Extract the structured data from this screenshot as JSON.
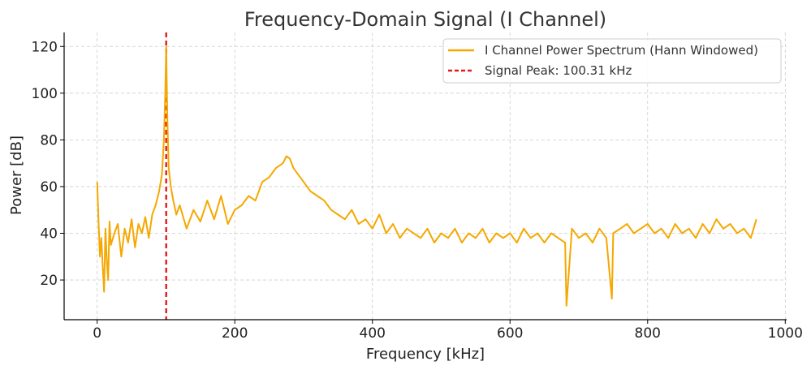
{
  "chart_data": {
    "type": "line",
    "title": "Frequency-Domain Signal (I Channel)",
    "xlabel": "Frequency [kHz]",
    "ylabel": "Power [dB]",
    "xlim": [
      -48,
      1002
    ],
    "ylim": [
      3,
      126
    ],
    "x_ticks": [
      0,
      200,
      400,
      600,
      800,
      1000
    ],
    "y_ticks": [
      20,
      40,
      60,
      80,
      100,
      120
    ],
    "x_tick_labels": [
      "0",
      "200",
      "400",
      "600",
      "800",
      "1000"
    ],
    "y_tick_labels": [
      "20",
      "40",
      "60",
      "80",
      "100",
      "120"
    ],
    "grid": true,
    "legend_position": "top-right",
    "series": [
      {
        "name": "I Channel Power Spectrum (Hann Windowed)",
        "color": "#f5a800",
        "style": "solid",
        "x": [
          0,
          2,
          4,
          6,
          8,
          10,
          12,
          14,
          16,
          18,
          20,
          25,
          30,
          35,
          40,
          45,
          50,
          55,
          60,
          65,
          70,
          75,
          80,
          85,
          90,
          94,
          97,
          99,
          100.31,
          102,
          104,
          107,
          110,
          115,
          120,
          130,
          140,
          150,
          160,
          170,
          180,
          190,
          200,
          210,
          220,
          230,
          240,
          250,
          260,
          270,
          275,
          280,
          285,
          290,
          300,
          310,
          320,
          330,
          340,
          350,
          360,
          370,
          380,
          390,
          400,
          410,
          420,
          430,
          440,
          450,
          460,
          470,
          480,
          490,
          500,
          510,
          520,
          530,
          540,
          550,
          560,
          570,
          580,
          590,
          600,
          610,
          620,
          630,
          640,
          650,
          660,
          670,
          680,
          682,
          690,
          700,
          710,
          720,
          730,
          740,
          748,
          750,
          760,
          770,
          780,
          790,
          800,
          810,
          820,
          830,
          840,
          850,
          860,
          870,
          880,
          890,
          900,
          910,
          920,
          930,
          940,
          950,
          958
        ],
        "y": [
          62,
          45,
          30,
          38,
          26,
          15,
          42,
          28,
          20,
          45,
          35,
          40,
          44,
          30,
          42,
          36,
          46,
          34,
          44,
          40,
          47,
          38,
          48,
          52,
          58,
          65,
          80,
          100,
          120,
          90,
          68,
          60,
          55,
          48,
          52,
          42,
          50,
          45,
          54,
          46,
          56,
          44,
          50,
          52,
          56,
          54,
          62,
          64,
          68,
          70,
          73,
          72,
          68,
          66,
          62,
          58,
          56,
          54,
          50,
          48,
          46,
          50,
          44,
          46,
          42,
          48,
          40,
          44,
          38,
          42,
          40,
          38,
          42,
          36,
          40,
          38,
          42,
          36,
          40,
          38,
          42,
          36,
          40,
          38,
          40,
          36,
          42,
          38,
          40,
          36,
          40,
          38,
          36,
          9,
          42,
          38,
          40,
          36,
          42,
          38,
          12,
          40,
          42,
          44,
          40,
          42,
          44,
          40,
          42,
          38,
          44,
          40,
          42,
          38,
          44,
          40,
          46,
          42,
          44,
          40,
          42,
          38,
          46
        ]
      }
    ],
    "reference_lines": [
      {
        "name": "Signal Peak: 100.31 kHz",
        "orientation": "vertical",
        "x": 100.31,
        "color": "#e31a1c",
        "style": "dashed"
      }
    ]
  }
}
